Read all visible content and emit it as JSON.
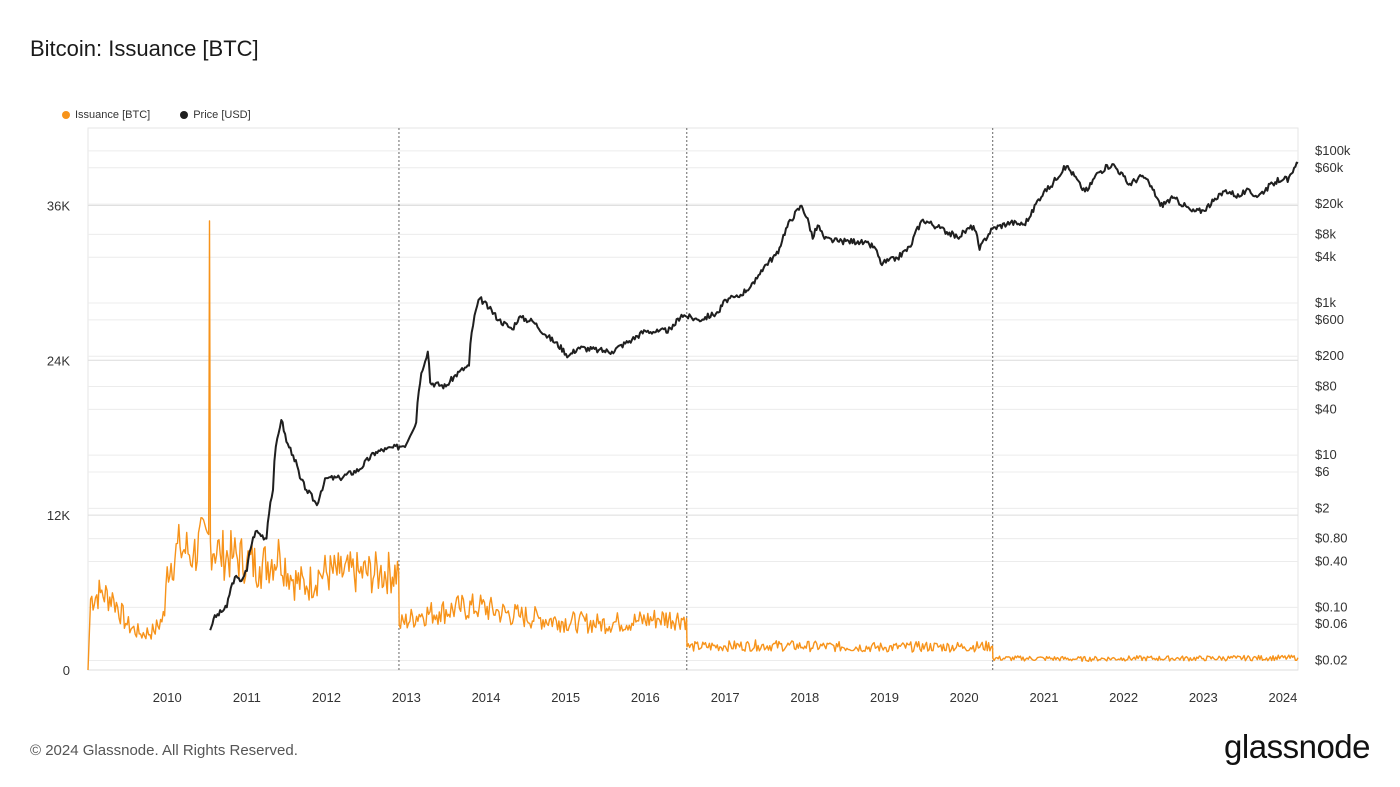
{
  "header": {
    "title": "Bitcoin: Issuance [BTC]"
  },
  "footer": {
    "copyright": "© 2024 Glassnode. All Rights Reserved.",
    "brand": "glassnode"
  },
  "colors": {
    "issuance": "#f7931a",
    "price": "#1f1f1f",
    "grid": "#ececec",
    "halving": "#666666"
  },
  "chart_data": {
    "type": "line",
    "title": "Bitcoin: Issuance [BTC]",
    "x_ticks": [
      "2010",
      "2011",
      "2012",
      "2013",
      "2014",
      "2015",
      "2016",
      "2017",
      "2018",
      "2019",
      "2020",
      "2021",
      "2022",
      "2023",
      "2024"
    ],
    "x_range": [
      "2009-01-03",
      "2024-03-10"
    ],
    "left_axis": {
      "ticks": [
        "0",
        "12K",
        "24K",
        "36K"
      ],
      "tick_values": [
        0,
        12000,
        24000,
        36000
      ],
      "ylim": [
        0,
        42000
      ]
    },
    "right_axis": {
      "scale": "log",
      "ticks": [
        "$0.02",
        "$0.06",
        "$0.10",
        "$0.40",
        "$0.80",
        "$2",
        "$6",
        "$10",
        "$40",
        "$80",
        "$200",
        "$600",
        "$1k",
        "$4k",
        "$8k",
        "$20k",
        "$60k",
        "$100k"
      ],
      "tick_values": [
        0.02,
        0.06,
        0.1,
        0.4,
        0.8,
        2,
        6,
        10,
        40,
        80,
        200,
        600,
        1000,
        4000,
        8000,
        20000,
        60000,
        100000
      ],
      "ylim": [
        0.015,
        200000
      ]
    },
    "halvings": [
      "2012-11-28",
      "2016-07-09",
      "2020-05-11"
    ],
    "legend": {
      "position": "top-left"
    },
    "grid": true,
    "series": [
      {
        "name": "Issuance [BTC]",
        "axis": "left",
        "color": "#f7931a",
        "points": [
          [
            "2009-01-03",
            0
          ],
          [
            "2009-01-15",
            5500
          ],
          [
            "2009-03-01",
            6000
          ],
          [
            "2009-05-01",
            5500
          ],
          [
            "2009-07-01",
            3500
          ],
          [
            "2009-09-01",
            2800
          ],
          [
            "2009-11-01",
            3000
          ],
          [
            "2009-12-20",
            4200
          ],
          [
            "2010-01-01",
            8000
          ],
          [
            "2010-03-01",
            9500
          ],
          [
            "2010-05-01",
            9000
          ],
          [
            "2010-07-10",
            10500
          ],
          [
            "2010-07-14",
            34800
          ],
          [
            "2010-07-18",
            10000
          ],
          [
            "2010-09-01",
            9000
          ],
          [
            "2010-11-01",
            8800
          ],
          [
            "2011-01-01",
            8500
          ],
          [
            "2011-03-01",
            8000
          ],
          [
            "2011-06-01",
            9000
          ],
          [
            "2011-08-01",
            7000
          ],
          [
            "2011-10-01",
            6500
          ],
          [
            "2011-12-01",
            7500
          ],
          [
            "2012-03-01",
            7500
          ],
          [
            "2012-06-01",
            7500
          ],
          [
            "2012-09-01",
            7500
          ],
          [
            "2012-11-27",
            7600
          ],
          [
            "2012-11-29",
            3500
          ],
          [
            "2013-03-01",
            4300
          ],
          [
            "2013-06-01",
            4500
          ],
          [
            "2013-09-01",
            4800
          ],
          [
            "2013-12-01",
            4900
          ],
          [
            "2014-03-01",
            4500
          ],
          [
            "2014-06-01",
            4200
          ],
          [
            "2014-09-01",
            4000
          ],
          [
            "2014-12-01",
            3800
          ],
          [
            "2015-03-01",
            3700
          ],
          [
            "2015-06-01",
            3600
          ],
          [
            "2015-09-01",
            3700
          ],
          [
            "2015-12-01",
            3800
          ],
          [
            "2016-03-01",
            4000
          ],
          [
            "2016-07-08",
            4000
          ],
          [
            "2016-07-10",
            1800
          ],
          [
            "2017-01-01",
            1850
          ],
          [
            "2017-06-01",
            1900
          ],
          [
            "2018-01-01",
            1850
          ],
          [
            "2018-06-01",
            1800
          ],
          [
            "2019-01-01",
            1750
          ],
          [
            "2019-06-01",
            1800
          ],
          [
            "2020-01-01",
            1800
          ],
          [
            "2020-05-10",
            1850
          ],
          [
            "2020-05-12",
            900
          ],
          [
            "2021-01-01",
            900
          ],
          [
            "2021-06-01",
            850
          ],
          [
            "2022-01-01",
            900
          ],
          [
            "2022-06-01",
            900
          ],
          [
            "2023-01-01",
            900
          ],
          [
            "2023-06-01",
            920
          ],
          [
            "2024-03-10",
            950
          ]
        ]
      },
      {
        "name": "Price [USD]",
        "axis": "right",
        "color": "#1f1f1f",
        "points": [
          [
            "2010-07-17",
            0.05
          ],
          [
            "2010-08-01",
            0.07
          ],
          [
            "2010-10-01",
            0.1
          ],
          [
            "2010-11-07",
            0.25
          ],
          [
            "2010-12-01",
            0.22
          ],
          [
            "2011-01-01",
            0.3
          ],
          [
            "2011-02-10",
            1.0
          ],
          [
            "2011-04-01",
            0.8
          ],
          [
            "2011-05-01",
            3.5
          ],
          [
            "2011-06-08",
            29
          ],
          [
            "2011-07-01",
            15
          ],
          [
            "2011-08-01",
            10
          ],
          [
            "2011-09-01",
            5
          ],
          [
            "2011-10-01",
            3.5
          ],
          [
            "2011-11-18",
            2.2
          ],
          [
            "2012-01-01",
            5
          ],
          [
            "2012-03-01",
            5
          ],
          [
            "2012-06-01",
            6.5
          ],
          [
            "2012-08-15",
            11
          ],
          [
            "2012-10-01",
            12
          ],
          [
            "2012-12-01",
            13
          ],
          [
            "2013-01-01",
            14
          ],
          [
            "2013-02-15",
            27
          ],
          [
            "2013-04-09",
            230
          ],
          [
            "2013-04-20",
            90
          ],
          [
            "2013-07-01",
            80
          ],
          [
            "2013-09-01",
            125
          ],
          [
            "2013-10-15",
            150
          ],
          [
            "2013-12-04",
            1150
          ],
          [
            "2014-01-15",
            850
          ],
          [
            "2014-03-01",
            600
          ],
          [
            "2014-05-01",
            450
          ],
          [
            "2014-06-01",
            650
          ],
          [
            "2014-08-01",
            580
          ],
          [
            "2014-10-01",
            380
          ],
          [
            "2015-01-14",
            200
          ],
          [
            "2015-03-01",
            260
          ],
          [
            "2015-06-01",
            240
          ],
          [
            "2015-08-01",
            230
          ],
          [
            "2015-11-01",
            330
          ],
          [
            "2016-01-01",
            430
          ],
          [
            "2016-03-01",
            420
          ],
          [
            "2016-05-01",
            450
          ],
          [
            "2016-06-15",
            700
          ],
          [
            "2016-09-01",
            600
          ],
          [
            "2016-12-01",
            750
          ],
          [
            "2017-01-04",
            1100
          ],
          [
            "2017-03-01",
            1200
          ],
          [
            "2017-05-15",
            1800
          ],
          [
            "2017-06-15",
            2700
          ],
          [
            "2017-09-01",
            4500
          ],
          [
            "2017-12-17",
            19000
          ],
          [
            "2018-02-06",
            7000
          ],
          [
            "2018-03-01",
            10500
          ],
          [
            "2018-04-01",
            7000
          ],
          [
            "2018-06-01",
            6500
          ],
          [
            "2018-09-01",
            6500
          ],
          [
            "2018-11-15",
            5500
          ],
          [
            "2018-12-15",
            3300
          ],
          [
            "2019-03-01",
            3900
          ],
          [
            "2019-05-01",
            5500
          ],
          [
            "2019-06-26",
            12500
          ],
          [
            "2019-09-01",
            10000
          ],
          [
            "2019-12-01",
            7300
          ],
          [
            "2020-02-13",
            10300
          ],
          [
            "2020-03-12",
            5000
          ],
          [
            "2020-05-10",
            9500
          ],
          [
            "2020-08-01",
            11500
          ],
          [
            "2020-10-01",
            10800
          ],
          [
            "2020-11-01",
            14000
          ],
          [
            "2020-12-31",
            29000
          ],
          [
            "2021-02-01",
            34000
          ],
          [
            "2021-04-14",
            63000
          ],
          [
            "2021-06-20",
            33000
          ],
          [
            "2021-07-20",
            30000
          ],
          [
            "2021-09-06",
            52000
          ],
          [
            "2021-11-10",
            67000
          ],
          [
            "2022-01-24",
            36000
          ],
          [
            "2022-03-29",
            47000
          ],
          [
            "2022-06-18",
            19000
          ],
          [
            "2022-08-15",
            24000
          ],
          [
            "2022-11-10",
            16000
          ],
          [
            "2023-01-01",
            16500
          ],
          [
            "2023-03-01",
            23000
          ],
          [
            "2023-04-14",
            30500
          ],
          [
            "2023-06-15",
            25000
          ],
          [
            "2023-07-15",
            30000
          ],
          [
            "2023-09-10",
            25500
          ],
          [
            "2023-11-15",
            37000
          ],
          [
            "2024-01-11",
            46000
          ],
          [
            "2024-01-23",
            39000
          ],
          [
            "2024-02-15",
            52000
          ],
          [
            "2024-03-10",
            69000
          ]
        ]
      }
    ]
  }
}
